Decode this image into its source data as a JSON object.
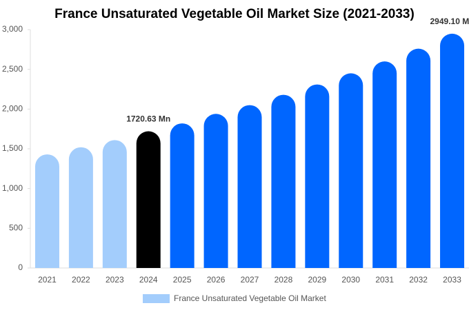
{
  "chart_data": {
    "type": "bar",
    "title": "France Unsaturated Vegetable Oil Market Size (2021-2033)",
    "categories": [
      "2021",
      "2022",
      "2023",
      "2024",
      "2025",
      "2026",
      "2027",
      "2028",
      "2029",
      "2030",
      "2031",
      "2032",
      "2033"
    ],
    "series": [
      {
        "name": "France Unsaturated Vegetable Oil Market",
        "color": "#a3cdfc",
        "values": [
          1430,
          1520,
          1610,
          1720.63,
          1820,
          1940,
          2050,
          2180,
          2310,
          2450,
          2600,
          2760,
          2949.1
        ],
        "value_labels": [
          null,
          null,
          null,
          "1720.63 Mn",
          null,
          null,
          null,
          null,
          null,
          null,
          null,
          null,
          "2949.10 Mn"
        ],
        "colors": [
          "#a3cdfc",
          "#a3cdfc",
          "#a3cdfc",
          "#000000",
          "#0066ff",
          "#0066ff",
          "#0066ff",
          "#0066ff",
          "#0066ff",
          "#0066ff",
          "#0066ff",
          "#0066ff",
          "#0066ff"
        ]
      }
    ],
    "ylim": [
      0,
      3000
    ],
    "yticks": [
      0,
      500,
      {
        "value": 1000,
        "label": "1,000"
      },
      {
        "value": 1500,
        "label": "1,500"
      },
      {
        "value": 2000,
        "label": "2,000"
      },
      {
        "value": 2500,
        "label": "2,500"
      },
      {
        "value": 3000,
        "label": "3,000"
      }
    ],
    "grid": false
  }
}
